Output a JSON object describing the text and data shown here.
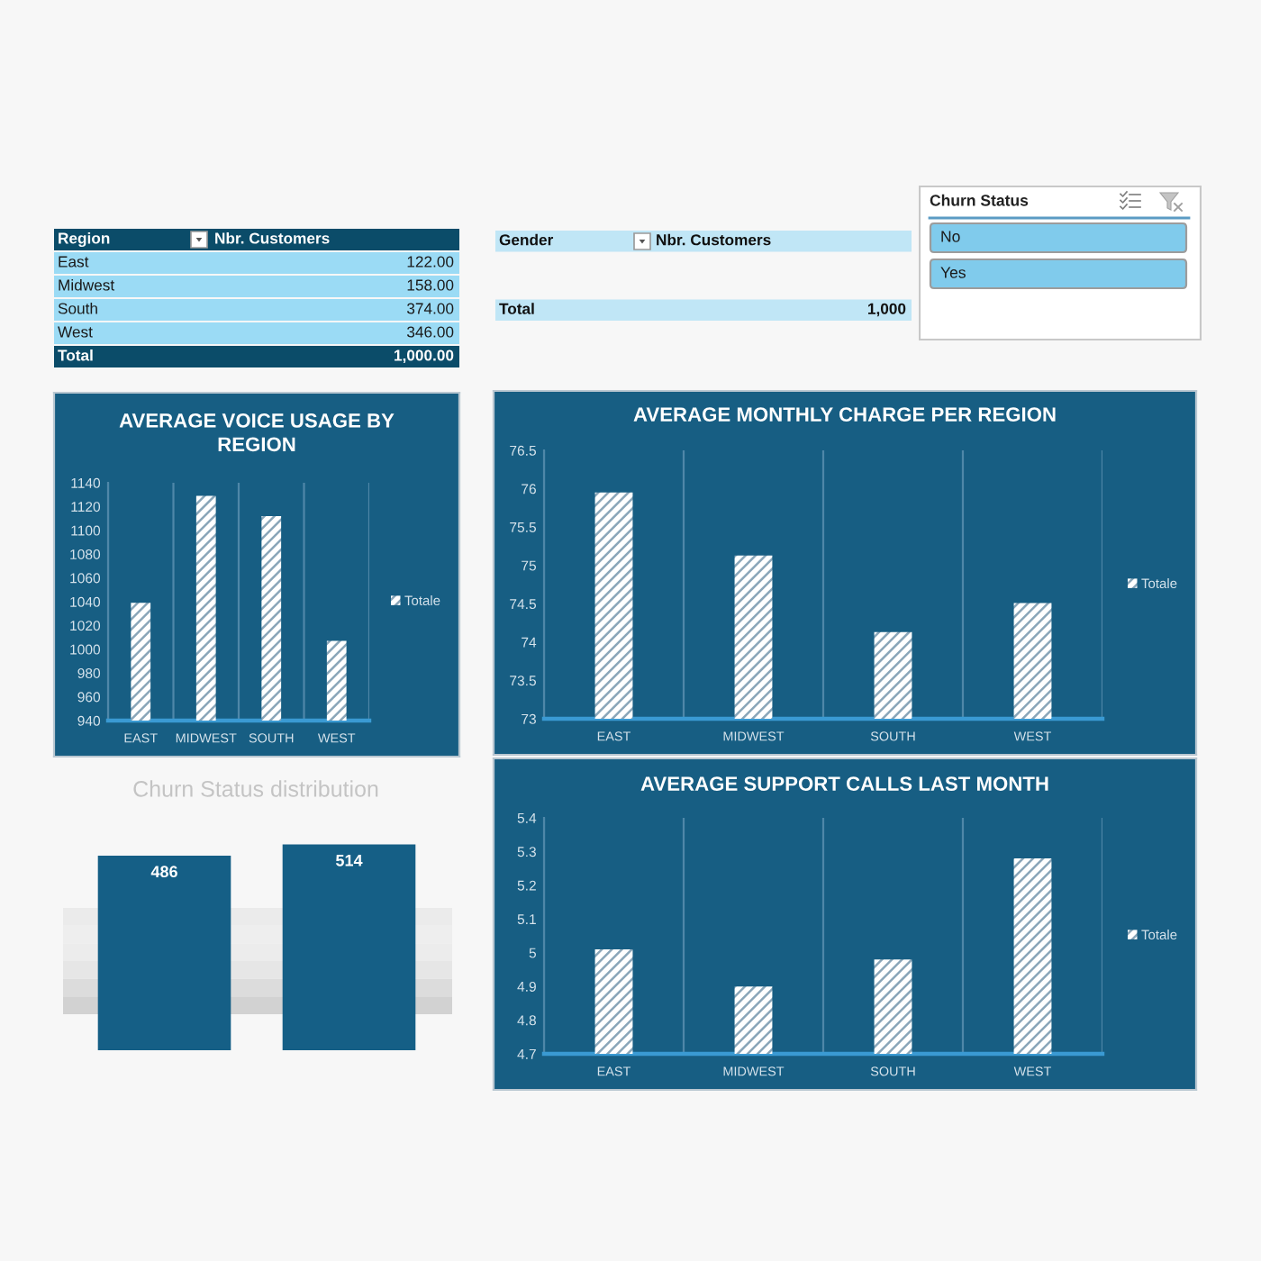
{
  "chart_data": [
    {
      "type": "other",
      "annotations": [
        "Region",
        "Nbr. Customers",
        "East",
        "122.00",
        "Midwest",
        "158.00",
        "South",
        "374.00",
        "West",
        "346.00",
        "Total",
        "1,000.00"
      ]
    },
    {
      "type": "other",
      "annotations": [
        "Gender",
        "Nbr. Customers",
        "Total",
        "1,000"
      ]
    },
    {
      "type": "other",
      "title": "Churn Status",
      "categories": [
        "No",
        "Yes"
      ]
    },
    {
      "type": "bar",
      "title": "AVERAGE VOICE USAGE BY\nREGION",
      "categories": [
        "EAST",
        "MIDWEST",
        "SOUTH",
        "WEST"
      ],
      "series": [
        {
          "name": "Totale",
          "color": "#ffffff",
          "values": [
            1039,
            1129,
            1112,
            1007
          ]
        }
      ],
      "ylim": [
        940,
        1140
      ],
      "yticks": [
        940,
        960,
        980,
        1000,
        1020,
        1040,
        1060,
        1080,
        1100,
        1120,
        1140
      ],
      "grid": "x",
      "legend": "right"
    },
    {
      "type": "bar",
      "title": "AVERAGE MONTHLY CHARGE PER REGION",
      "categories": [
        "EAST",
        "MIDWEST",
        "SOUTH",
        "WEST"
      ],
      "series": [
        {
          "name": "Totale",
          "color": "#ffffff",
          "values": [
            75.95,
            75.13,
            74.13,
            74.51
          ]
        }
      ],
      "ylim": [
        73,
        76.5
      ],
      "yticks": [
        73,
        73.5,
        74,
        74.5,
        75,
        75.5,
        76,
        76.5
      ],
      "grid": "x",
      "legend": "right"
    },
    {
      "type": "bar",
      "title": "Churn Status distribution",
      "categories": [
        null,
        null
      ],
      "values": [
        486,
        514
      ],
      "color": "#155f86",
      "data_labels": true
    },
    {
      "type": "bar",
      "title": "AVERAGE SUPPORT CALLS LAST MONTH",
      "categories": [
        "EAST",
        "MIDWEST",
        "SOUTH",
        "WEST"
      ],
      "series": [
        {
          "name": "Totale",
          "color": "#ffffff",
          "values": [
            5.01,
            4.9,
            4.98,
            5.28
          ]
        }
      ],
      "ylim": [
        4.7,
        5.4
      ],
      "yticks": [
        4.7,
        4.8,
        4.9,
        5,
        5.1,
        5.2,
        5.3,
        5.4
      ],
      "grid": "x",
      "legend": "right"
    }
  ]
}
